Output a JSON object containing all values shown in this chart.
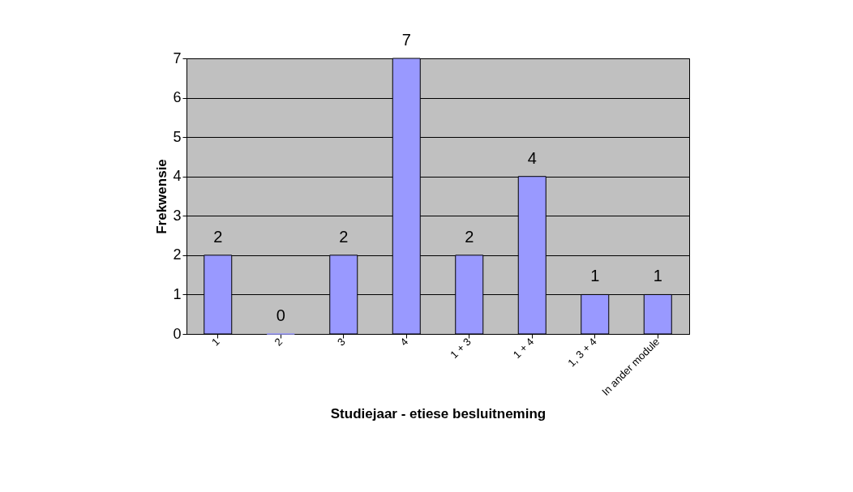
{
  "chart_data": {
    "type": "bar",
    "xlabel": "Studiejaar - etiese besluitneming",
    "ylabel": "Frekwensie",
    "categories": [
      "1",
      "2",
      "3",
      "4",
      "1 + 3",
      "1 + 4",
      "1, 3 + 4",
      "In ander module"
    ],
    "values": [
      2,
      0,
      2,
      7,
      2,
      4,
      1,
      1
    ],
    "color": "#9999ff",
    "ylim": [
      0,
      7
    ],
    "yticks": [
      0,
      1,
      2,
      3,
      4,
      5,
      6,
      7
    ],
    "grid": "y",
    "data_labels": true
  }
}
